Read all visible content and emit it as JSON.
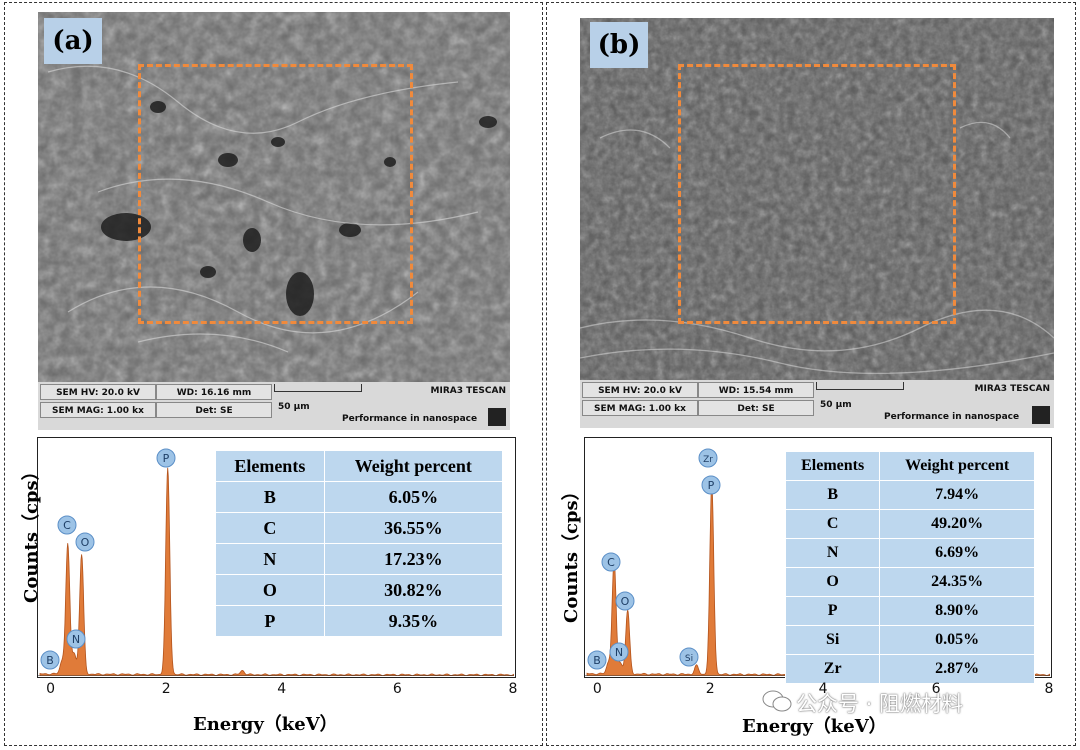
{
  "panels": [
    {
      "label": "(a)",
      "sem": {
        "hv": "SEM HV: 20.0 kV",
        "wd": "WD: 16.16 mm",
        "brand": "MIRA3 TESCAN",
        "mag": "SEM MAG: 1.00 kx",
        "det": "Det: SE",
        "scale": "50 μm",
        "tagline": "Performance in nanospace"
      },
      "table": {
        "headers": [
          "Elements",
          "Weight percent"
        ],
        "rows": [
          [
            "B",
            "6.05%"
          ],
          [
            "C",
            "36.55%"
          ],
          [
            "N",
            "17.23%"
          ],
          [
            "O",
            "30.82%"
          ],
          [
            "P",
            "9.35%"
          ]
        ]
      }
    },
    {
      "label": "(b)",
      "sem": {
        "hv": "SEM HV: 20.0 kV",
        "wd": "WD: 15.54 mm",
        "brand": "MIRA3 TESCAN",
        "mag": "SEM MAG: 1.00 kx",
        "det": "Det: SE",
        "scale": "50 μm",
        "tagline": "Performance in nanospace"
      },
      "table": {
        "headers": [
          "Elements",
          "Weight percent"
        ],
        "rows": [
          [
            "B",
            "7.94%"
          ],
          [
            "C",
            "49.20%"
          ],
          [
            "N",
            "6.69%"
          ],
          [
            "O",
            "24.35%"
          ],
          [
            "P",
            "8.90%"
          ],
          [
            "Si",
            "0.05%"
          ],
          [
            "Zr",
            "2.87%"
          ]
        ]
      }
    }
  ],
  "chart_data": [
    {
      "type": "line",
      "xlabel": "Energy（keV）",
      "ylabel": "Counts（cps）",
      "xlim": [
        -0.2,
        8
      ],
      "xticks": [
        "0",
        "2",
        "4",
        "6",
        "8"
      ],
      "peaks": [
        {
          "label": "B",
          "x": 0.18,
          "height": 0.06
        },
        {
          "label": "C",
          "x": 0.28,
          "height": 0.63
        },
        {
          "label": "N",
          "x": 0.39,
          "height": 0.1
        },
        {
          "label": "O",
          "x": 0.52,
          "height": 0.58
        },
        {
          "label": "P",
          "x": 2.01,
          "height": 1.0
        },
        {
          "label": "",
          "x": 3.3,
          "height": 0.02
        }
      ],
      "fill_color": "#e07b39"
    },
    {
      "type": "line",
      "xlabel": "Energy（keV）",
      "ylabel": "Counts（cps）",
      "xlim": [
        -0.2,
        8
      ],
      "xticks": [
        "0",
        "2",
        "4",
        "6",
        "8"
      ],
      "peaks": [
        {
          "label": "B",
          "x": 0.18,
          "height": 0.05
        },
        {
          "label": "C",
          "x": 0.28,
          "height": 0.52
        },
        {
          "label": "N",
          "x": 0.39,
          "height": 0.05
        },
        {
          "label": "O",
          "x": 0.52,
          "height": 0.29
        },
        {
          "label": "Si",
          "x": 1.74,
          "height": 0.04
        },
        {
          "label": "P",
          "x": 2.01,
          "height": 0.87
        },
        {
          "label": "Zr",
          "x": 2.04,
          "height": 0.0
        }
      ],
      "fill_color": "#e07b39"
    }
  ],
  "watermark": "公众号 · 阻燃材料"
}
